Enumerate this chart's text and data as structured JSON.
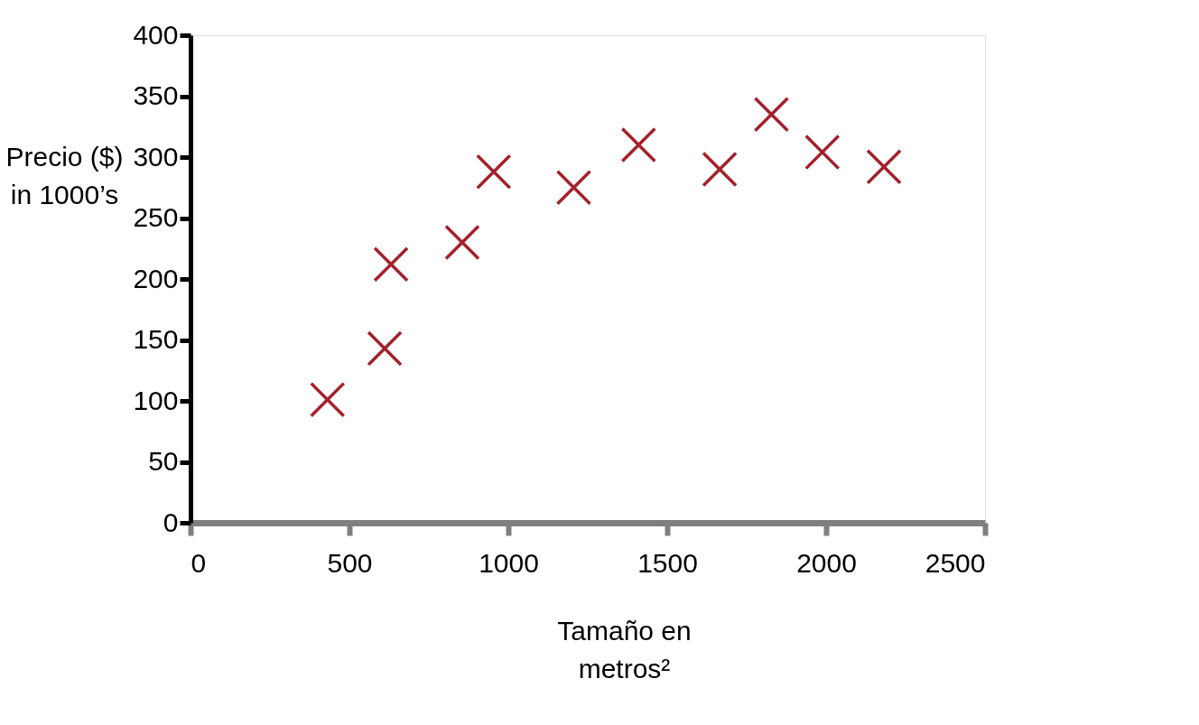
{
  "chart_data": {
    "type": "scatter",
    "xlabel": "Tamaño en metros²",
    "ylabel": "Precio ($) in 1000’s",
    "x": [
      431,
      611,
      631,
      855,
      954,
      1206,
      1410,
      1665,
      1828,
      1988,
      2182
    ],
    "series": [
      {
        "color": "#a3212b",
        "values": [
          101,
          143,
          212,
          230,
          288,
          275,
          310,
          290,
          335,
          304,
          292
        ]
      }
    ],
    "xlim": [
      0,
      2500
    ],
    "xticks": [
      0,
      500,
      1000,
      1500,
      2000,
      2500
    ],
    "ylim": [
      0,
      400
    ],
    "yticks": [
      0,
      50,
      100,
      150,
      200,
      250,
      300,
      350,
      400
    ],
    "grid": false,
    "legend": false,
    "marker": "cross"
  }
}
